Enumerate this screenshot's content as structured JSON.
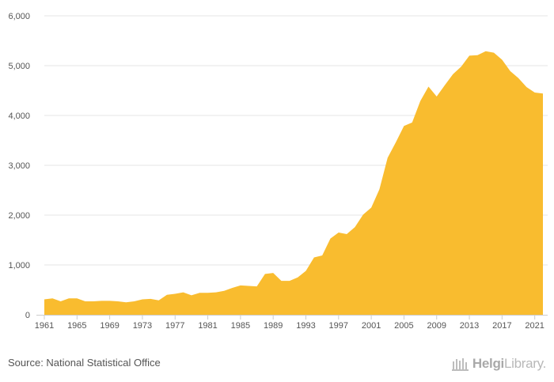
{
  "chart_data": {
    "type": "area",
    "color": "#F9BC2F",
    "grid": true,
    "ylim": [
      0,
      6000
    ],
    "yticks": [
      0,
      1000,
      2000,
      3000,
      4000,
      5000,
      6000
    ],
    "ytick_labels": [
      "0",
      "1,000",
      "2,000",
      "3,000",
      "4,000",
      "5,000",
      "6,000"
    ],
    "xlim": [
      1961,
      2022
    ],
    "xticks": [
      1961,
      1965,
      1969,
      1973,
      1977,
      1981,
      1985,
      1989,
      1993,
      1997,
      2001,
      2005,
      2009,
      2013,
      2017,
      2021
    ],
    "x": [
      1961,
      1962,
      1963,
      1964,
      1965,
      1966,
      1967,
      1968,
      1969,
      1970,
      1971,
      1972,
      1973,
      1974,
      1975,
      1976,
      1977,
      1978,
      1979,
      1980,
      1981,
      1982,
      1983,
      1984,
      1985,
      1986,
      1987,
      1988,
      1989,
      1990,
      1991,
      1992,
      1993,
      1994,
      1995,
      1996,
      1997,
      1998,
      1999,
      2000,
      2001,
      2002,
      2003,
      2004,
      2005,
      2006,
      2007,
      2008,
      2009,
      2010,
      2011,
      2012,
      2013,
      2014,
      2015,
      2016,
      2017,
      2018,
      2019,
      2020,
      2021,
      2022
    ],
    "values": [
      310,
      330,
      270,
      330,
      330,
      270,
      270,
      280,
      280,
      270,
      250,
      270,
      310,
      320,
      290,
      400,
      420,
      450,
      390,
      440,
      440,
      450,
      480,
      540,
      590,
      580,
      570,
      820,
      840,
      680,
      680,
      750,
      880,
      1150,
      1190,
      1530,
      1650,
      1620,
      1760,
      2010,
      2150,
      2520,
      3150,
      3460,
      3790,
      3860,
      4290,
      4580,
      4380,
      4610,
      4830,
      4980,
      5200,
      5210,
      5290,
      5260,
      5120,
      4890,
      4750,
      4570,
      4460,
      4440
    ]
  },
  "footer": {
    "source": "Source: National Statistical Office",
    "logo_text_bold": "Helgi",
    "logo_text_rest": "Library."
  }
}
